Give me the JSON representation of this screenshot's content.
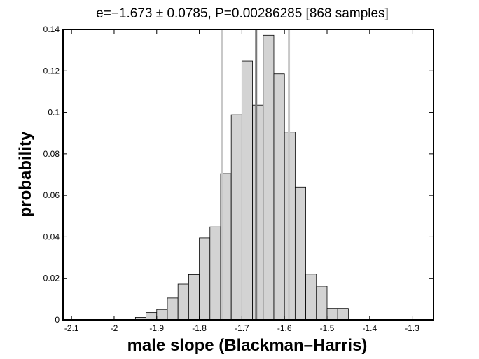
{
  "chart_data": {
    "type": "bar",
    "title": "e=−1.673 ± 0.0785, P=0.00286285 [868 samples]",
    "xlabel": "male slope (Blackman–Harris)",
    "ylabel": "probability",
    "xlim": [
      -2.12,
      -1.25
    ],
    "ylim": [
      0,
      0.14
    ],
    "grid": false,
    "x_ticks": [
      -2.1,
      -2.0,
      -1.9,
      -1.8,
      -1.7,
      -1.6,
      -1.5,
      -1.4,
      -1.3
    ],
    "x_tick_labels": [
      "-2.1",
      "-2",
      "-1.9",
      "-1.8",
      "-1.7",
      "-1.6",
      "-1.5",
      "-1.4",
      "-1.3"
    ],
    "y_ticks": [
      0,
      0.02,
      0.04,
      0.06,
      0.08,
      0.1,
      0.12,
      0.14
    ],
    "y_tick_labels": [
      "0",
      "0.02",
      "0.04",
      "0.06",
      "0.08",
      "0.1",
      "0.12",
      "0.14"
    ],
    "bin_width": 0.025,
    "bin_centers": [
      -1.9375,
      -1.9125,
      -1.8875,
      -1.8625,
      -1.8375,
      -1.8125,
      -1.7875,
      -1.7625,
      -1.7375,
      -1.7125,
      -1.6875,
      -1.6625,
      -1.6375,
      -1.6125,
      -1.5875,
      -1.5625,
      -1.5375,
      -1.5125,
      -1.4875,
      -1.4625
    ],
    "values": [
      0.0012,
      0.0035,
      0.005,
      0.0105,
      0.0172,
      0.0218,
      0.0395,
      0.0448,
      0.0705,
      0.0988,
      0.1248,
      0.1035,
      0.1372,
      0.1185,
      0.0905,
      0.064,
      0.022,
      0.0162,
      0.0055,
      0.0055
    ],
    "vertical_lines": [
      {
        "x": -1.7465,
        "style": "light"
      },
      {
        "x": -1.6665,
        "style": "dark"
      },
      {
        "x": -1.5895,
        "style": "light"
      }
    ],
    "colors": {
      "bar_fill": "#d3d3d3",
      "bar_edge": "#000000",
      "line_light": "#c8c8c8",
      "line_dark": "#777777"
    }
  }
}
